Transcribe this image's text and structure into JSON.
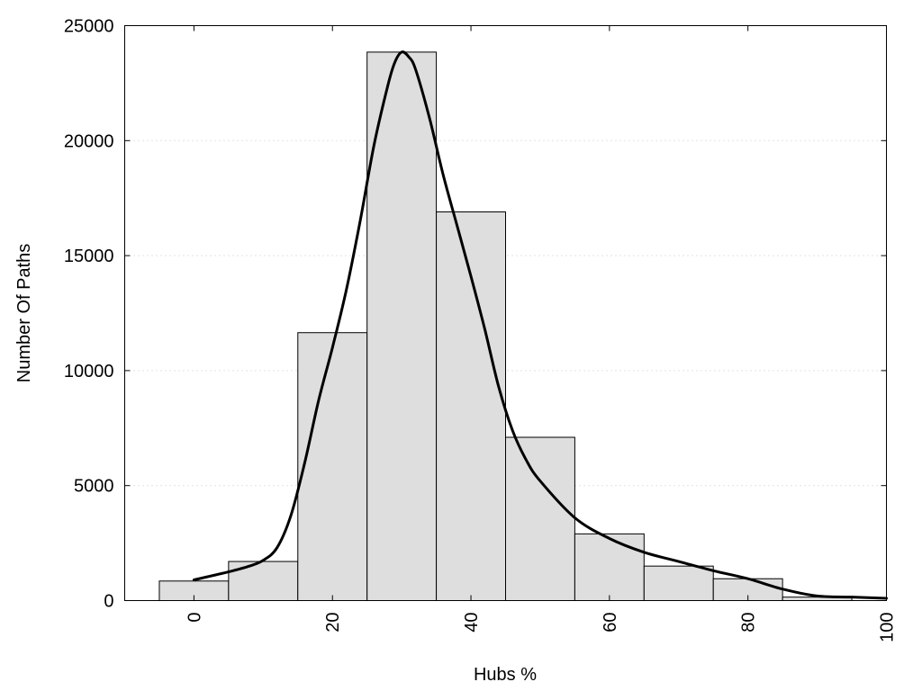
{
  "chart_data": {
    "type": "bar",
    "xlabel": "Hubs %",
    "ylabel": "Number Of Paths",
    "xlim": [
      -10,
      100
    ],
    "ylim": [
      0,
      25000
    ],
    "x_ticks": [
      "0",
      "20",
      "40",
      "60",
      "80",
      "100"
    ],
    "x_tick_values": [
      0,
      20,
      40,
      60,
      80,
      100
    ],
    "y_ticks": [
      "0",
      "5000",
      "10000",
      "15000",
      "20000",
      "25000"
    ],
    "y_tick_values": [
      0,
      5000,
      10000,
      15000,
      20000,
      25000
    ],
    "grid": "horizontal dotted",
    "bin_width": 10,
    "bin_centers": [
      0,
      10,
      20,
      30,
      40,
      50,
      60,
      70,
      80,
      90
    ],
    "values": [
      850,
      1700,
      11650,
      23850,
      16900,
      7100,
      2900,
      1500,
      950,
      150
    ],
    "density_curve": {
      "x": [
        0,
        5,
        8,
        10,
        12,
        14,
        16,
        18,
        20,
        22,
        24,
        26,
        28,
        29,
        30,
        31,
        32,
        34,
        36,
        38,
        40,
        42,
        44,
        46,
        48,
        50,
        55,
        60,
        65,
        70,
        75,
        80,
        85,
        90,
        95,
        100
      ],
      "y": [
        900,
        1250,
        1500,
        1750,
        2300,
        3700,
        6000,
        8700,
        11000,
        13500,
        16500,
        19800,
        22400,
        23400,
        23850,
        23650,
        23100,
        21000,
        18500,
        16300,
        14100,
        11800,
        9300,
        7400,
        6100,
        5200,
        3600,
        2700,
        2100,
        1700,
        1300,
        950,
        500,
        200,
        150,
        100
      ]
    },
    "colors": {
      "bar_fill": "#dedede",
      "bar_edge": "#000000",
      "curve": "#000000",
      "grid": "#c8c8c8"
    }
  }
}
